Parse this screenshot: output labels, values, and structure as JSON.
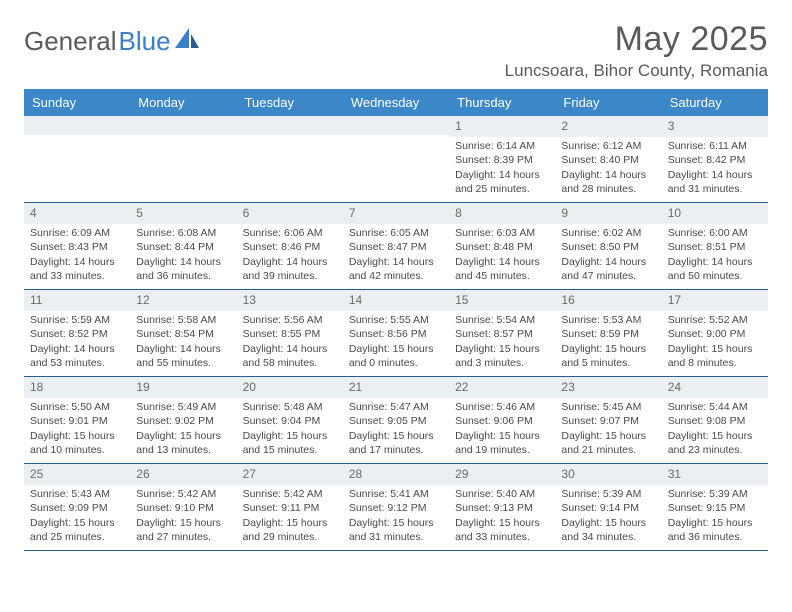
{
  "brand": {
    "prefix": "General",
    "suffix": "Blue"
  },
  "title": "May 2025",
  "location": "Luncsoara, Bihor County, Romania",
  "colors": {
    "header_bg": "#3b87c8",
    "header_text": "#ffffff",
    "border": "#2a5d8f",
    "daynum_bg": "#eceff1",
    "text": "#4a4a4a",
    "title_color": "#5a5a5a",
    "logo_blue": "#3b7fc4"
  },
  "weekdays": [
    "Sunday",
    "Monday",
    "Tuesday",
    "Wednesday",
    "Thursday",
    "Friday",
    "Saturday"
  ],
  "weeks": [
    [
      {
        "blank": true
      },
      {
        "blank": true
      },
      {
        "blank": true
      },
      {
        "blank": true
      },
      {
        "day": "1",
        "sunrise": "6:14 AM",
        "sunset": "8:39 PM",
        "daylight": "14 hours and 25 minutes."
      },
      {
        "day": "2",
        "sunrise": "6:12 AM",
        "sunset": "8:40 PM",
        "daylight": "14 hours and 28 minutes."
      },
      {
        "day": "3",
        "sunrise": "6:11 AM",
        "sunset": "8:42 PM",
        "daylight": "14 hours and 31 minutes."
      }
    ],
    [
      {
        "day": "4",
        "sunrise": "6:09 AM",
        "sunset": "8:43 PM",
        "daylight": "14 hours and 33 minutes."
      },
      {
        "day": "5",
        "sunrise": "6:08 AM",
        "sunset": "8:44 PM",
        "daylight": "14 hours and 36 minutes."
      },
      {
        "day": "6",
        "sunrise": "6:06 AM",
        "sunset": "8:46 PM",
        "daylight": "14 hours and 39 minutes."
      },
      {
        "day": "7",
        "sunrise": "6:05 AM",
        "sunset": "8:47 PM",
        "daylight": "14 hours and 42 minutes."
      },
      {
        "day": "8",
        "sunrise": "6:03 AM",
        "sunset": "8:48 PM",
        "daylight": "14 hours and 45 minutes."
      },
      {
        "day": "9",
        "sunrise": "6:02 AM",
        "sunset": "8:50 PM",
        "daylight": "14 hours and 47 minutes."
      },
      {
        "day": "10",
        "sunrise": "6:00 AM",
        "sunset": "8:51 PM",
        "daylight": "14 hours and 50 minutes."
      }
    ],
    [
      {
        "day": "11",
        "sunrise": "5:59 AM",
        "sunset": "8:52 PM",
        "daylight": "14 hours and 53 minutes."
      },
      {
        "day": "12",
        "sunrise": "5:58 AM",
        "sunset": "8:54 PM",
        "daylight": "14 hours and 55 minutes."
      },
      {
        "day": "13",
        "sunrise": "5:56 AM",
        "sunset": "8:55 PM",
        "daylight": "14 hours and 58 minutes."
      },
      {
        "day": "14",
        "sunrise": "5:55 AM",
        "sunset": "8:56 PM",
        "daylight": "15 hours and 0 minutes."
      },
      {
        "day": "15",
        "sunrise": "5:54 AM",
        "sunset": "8:57 PM",
        "daylight": "15 hours and 3 minutes."
      },
      {
        "day": "16",
        "sunrise": "5:53 AM",
        "sunset": "8:59 PM",
        "daylight": "15 hours and 5 minutes."
      },
      {
        "day": "17",
        "sunrise": "5:52 AM",
        "sunset": "9:00 PM",
        "daylight": "15 hours and 8 minutes."
      }
    ],
    [
      {
        "day": "18",
        "sunrise": "5:50 AM",
        "sunset": "9:01 PM",
        "daylight": "15 hours and 10 minutes."
      },
      {
        "day": "19",
        "sunrise": "5:49 AM",
        "sunset": "9:02 PM",
        "daylight": "15 hours and 13 minutes."
      },
      {
        "day": "20",
        "sunrise": "5:48 AM",
        "sunset": "9:04 PM",
        "daylight": "15 hours and 15 minutes."
      },
      {
        "day": "21",
        "sunrise": "5:47 AM",
        "sunset": "9:05 PM",
        "daylight": "15 hours and 17 minutes."
      },
      {
        "day": "22",
        "sunrise": "5:46 AM",
        "sunset": "9:06 PM",
        "daylight": "15 hours and 19 minutes."
      },
      {
        "day": "23",
        "sunrise": "5:45 AM",
        "sunset": "9:07 PM",
        "daylight": "15 hours and 21 minutes."
      },
      {
        "day": "24",
        "sunrise": "5:44 AM",
        "sunset": "9:08 PM",
        "daylight": "15 hours and 23 minutes."
      }
    ],
    [
      {
        "day": "25",
        "sunrise": "5:43 AM",
        "sunset": "9:09 PM",
        "daylight": "15 hours and 25 minutes."
      },
      {
        "day": "26",
        "sunrise": "5:42 AM",
        "sunset": "9:10 PM",
        "daylight": "15 hours and 27 minutes."
      },
      {
        "day": "27",
        "sunrise": "5:42 AM",
        "sunset": "9:11 PM",
        "daylight": "15 hours and 29 minutes."
      },
      {
        "day": "28",
        "sunrise": "5:41 AM",
        "sunset": "9:12 PM",
        "daylight": "15 hours and 31 minutes."
      },
      {
        "day": "29",
        "sunrise": "5:40 AM",
        "sunset": "9:13 PM",
        "daylight": "15 hours and 33 minutes."
      },
      {
        "day": "30",
        "sunrise": "5:39 AM",
        "sunset": "9:14 PM",
        "daylight": "15 hours and 34 minutes."
      },
      {
        "day": "31",
        "sunrise": "5:39 AM",
        "sunset": "9:15 PM",
        "daylight": "15 hours and 36 minutes."
      }
    ]
  ],
  "labels": {
    "sunrise": "Sunrise: ",
    "sunset": "Sunset: ",
    "daylight": "Daylight: "
  }
}
